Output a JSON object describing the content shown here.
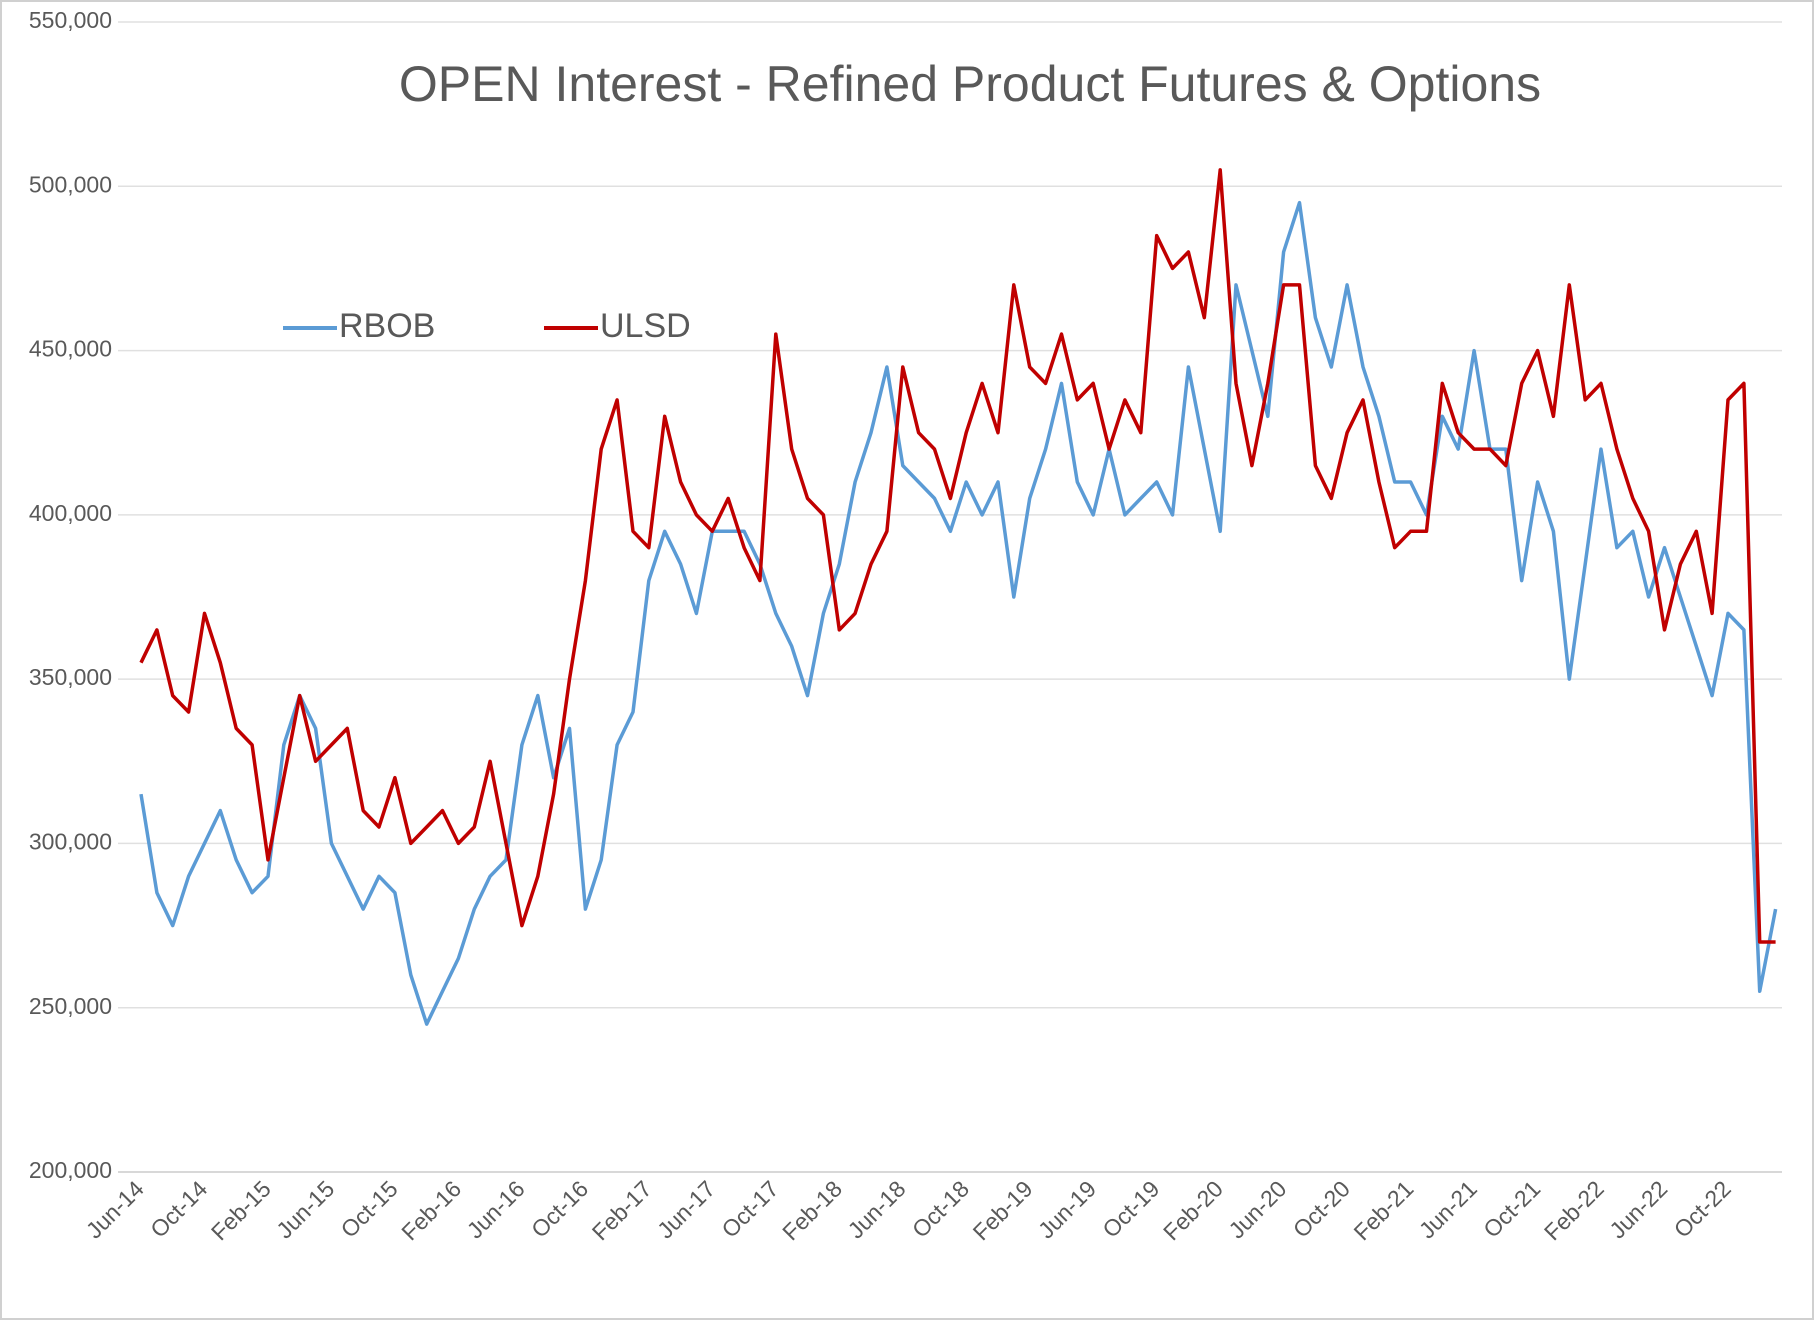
{
  "chart_data": {
    "type": "line",
    "title": "OPEN Interest - Refined Product Futures & Options",
    "categories": [
      "Jun-14",
      null,
      null,
      null,
      "Oct-14",
      null,
      null,
      null,
      "Feb-15",
      null,
      null,
      null,
      "Jun-15",
      null,
      null,
      null,
      "Oct-15",
      null,
      null,
      null,
      "Feb-16",
      null,
      null,
      null,
      "Jun-16",
      null,
      null,
      null,
      "Oct-16",
      null,
      null,
      null,
      "Feb-17",
      null,
      null,
      null,
      "Jun-17",
      null,
      null,
      null,
      "Oct-17",
      null,
      null,
      null,
      "Feb-18",
      null,
      null,
      null,
      "Jun-18",
      null,
      null,
      null,
      "Oct-18",
      null,
      null,
      null,
      "Feb-19",
      null,
      null,
      null,
      "Jun-19",
      null,
      null,
      null,
      "Oct-19",
      null,
      null,
      null,
      "Feb-20",
      null,
      null,
      null,
      "Jun-20",
      null,
      null,
      null,
      "Oct-20",
      null,
      null,
      null,
      "Feb-21",
      null,
      null,
      null,
      "Jun-21",
      null,
      null,
      null,
      "Oct-21",
      null,
      null,
      null,
      "Feb-22",
      null,
      null,
      null,
      "Jun-22",
      null,
      null,
      null,
      "Oct-22",
      null,
      null,
      null
    ],
    "series": [
      {
        "name": "RBOB",
        "color": "#5b9bd5",
        "values": [
          315000,
          285000,
          275000,
          290000,
          300000,
          310000,
          295000,
          285000,
          290000,
          330000,
          345000,
          335000,
          300000,
          290000,
          280000,
          290000,
          285000,
          260000,
          245000,
          255000,
          265000,
          280000,
          290000,
          295000,
          330000,
          345000,
          320000,
          335000,
          280000,
          295000,
          330000,
          340000,
          380000,
          395000,
          385000,
          370000,
          395000,
          395000,
          395000,
          385000,
          370000,
          360000,
          345000,
          370000,
          385000,
          410000,
          425000,
          445000,
          415000,
          410000,
          405000,
          395000,
          410000,
          400000,
          410000,
          375000,
          405000,
          420000,
          440000,
          410000,
          400000,
          420000,
          400000,
          405000,
          410000,
          400000,
          445000,
          420000,
          395000,
          470000,
          450000,
          430000,
          480000,
          495000,
          460000,
          445000,
          470000,
          445000,
          430000,
          410000,
          410000,
          400000,
          430000,
          420000,
          450000,
          420000,
          420000,
          380000,
          410000,
          395000,
          350000,
          385000,
          420000,
          390000,
          395000,
          375000,
          390000,
          375000,
          360000,
          345000,
          370000,
          365000,
          255000,
          280000
        ]
      },
      {
        "name": "ULSD",
        "color": "#c00000",
        "values": [
          355000,
          365000,
          345000,
          340000,
          370000,
          355000,
          335000,
          330000,
          295000,
          320000,
          345000,
          325000,
          330000,
          335000,
          310000,
          305000,
          320000,
          300000,
          305000,
          310000,
          300000,
          305000,
          325000,
          300000,
          275000,
          290000,
          315000,
          350000,
          380000,
          420000,
          435000,
          395000,
          390000,
          430000,
          410000,
          400000,
          395000,
          405000,
          390000,
          380000,
          455000,
          420000,
          405000,
          400000,
          365000,
          370000,
          385000,
          395000,
          445000,
          425000,
          420000,
          405000,
          425000,
          440000,
          425000,
          470000,
          445000,
          440000,
          455000,
          435000,
          440000,
          420000,
          435000,
          425000,
          485000,
          475000,
          480000,
          460000,
          505000,
          440000,
          415000,
          440000,
          470000,
          470000,
          415000,
          405000,
          425000,
          435000,
          410000,
          390000,
          395000,
          395000,
          440000,
          425000,
          420000,
          420000,
          415000,
          440000,
          450000,
          430000,
          470000,
          435000,
          440000,
          420000,
          405000,
          395000,
          365000,
          385000,
          395000,
          370000,
          435000,
          440000,
          270000,
          270000
        ]
      }
    ],
    "ylim": [
      200000,
      550000
    ],
    "yticks": [
      {
        "value": 200000,
        "label": "200,000"
      },
      {
        "value": 250000,
        "label": "250,000"
      },
      {
        "value": 300000,
        "label": "300,000"
      },
      {
        "value": 350000,
        "label": "350,000"
      },
      {
        "value": 400000,
        "label": "400,000"
      },
      {
        "value": 450000,
        "label": "450,000"
      },
      {
        "value": 500000,
        "label": "500,000"
      },
      {
        "value": 550000,
        "label": "550,000"
      }
    ],
    "grid": true
  }
}
